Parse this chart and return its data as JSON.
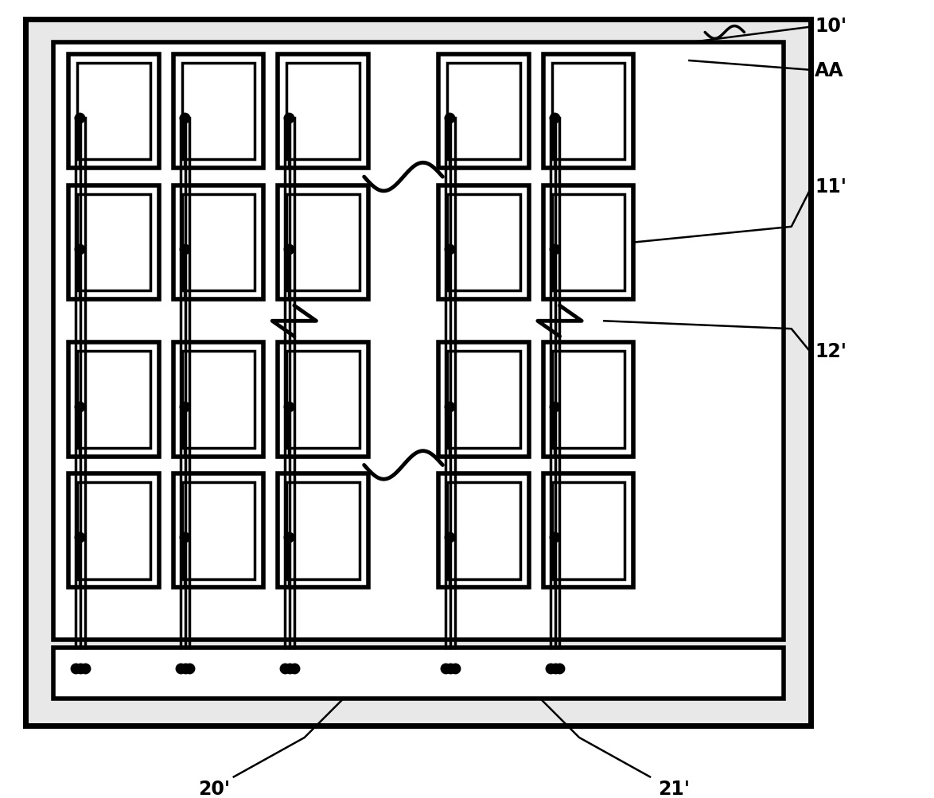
{
  "bg_color": "#ffffff",
  "lw_outer": 5,
  "lw_inner_border": 4,
  "lw_cell_outer": 4,
  "lw_cell_inner": 2.5,
  "lw_wire": 2.5,
  "lw_label": 1.8,
  "dot_size_cell": 9,
  "dot_size_bar": 9,
  "label_10": "10'",
  "label_AA": "AA",
  "label_11": "11'",
  "label_12": "12'",
  "label_20": "20'",
  "label_21": "21'",
  "fontsize": 17
}
